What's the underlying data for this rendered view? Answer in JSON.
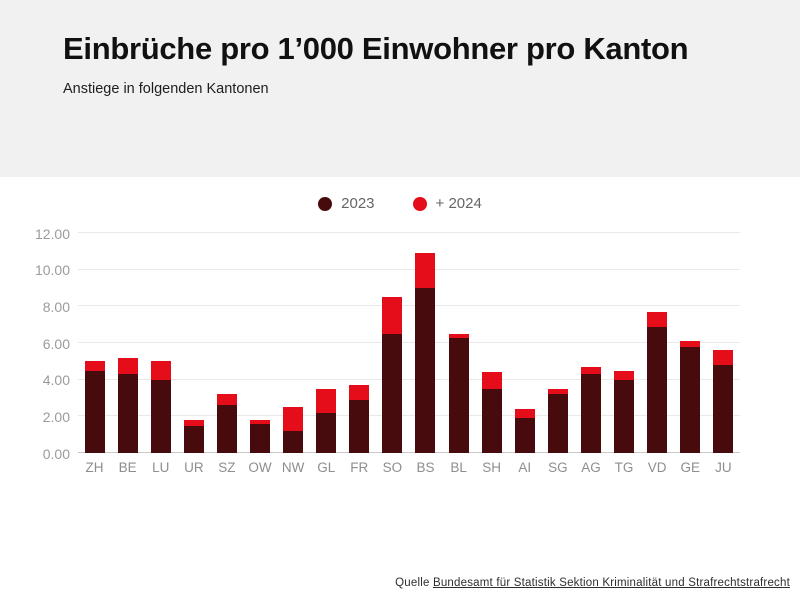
{
  "header": {
    "title": "Einbrüche pro 1’000 Einwohner pro Kanton",
    "subtitle": "Anstiege in folgenden Kantonen"
  },
  "legend": {
    "items": [
      {
        "label": "2023",
        "color": "#470b0e"
      },
      {
        "label": "+ 2024",
        "color": "#e50d1a"
      }
    ]
  },
  "chart_data": {
    "type": "bar",
    "stacked": true,
    "title": "Einbrüche pro 1’000 Einwohner pro Kanton",
    "xlabel": "",
    "ylabel": "",
    "ylim": [
      0,
      12
    ],
    "ytick_labels": [
      "0.00",
      "2.00",
      "4.00",
      "6.00",
      "8.00",
      "10.00",
      "12.00"
    ],
    "ytick_values": [
      0,
      2,
      4,
      6,
      8,
      10,
      12
    ],
    "grid": "horizontal",
    "legend_position": "top-center",
    "categories": [
      "ZH",
      "BE",
      "LU",
      "UR",
      "SZ",
      "OW",
      "NW",
      "GL",
      "FR",
      "SO",
      "BS",
      "BL",
      "SH",
      "AI",
      "SG",
      "AG",
      "TG",
      "VD",
      "GE",
      "JU"
    ],
    "series": [
      {
        "name": "2023",
        "color": "#470b0e",
        "values": [
          4.5,
          4.3,
          4.0,
          1.5,
          2.6,
          1.6,
          1.2,
          2.2,
          2.9,
          6.5,
          9.0,
          6.3,
          3.5,
          1.9,
          3.2,
          4.3,
          4.0,
          6.9,
          5.8,
          4.8
        ]
      },
      {
        "name": "+ 2024",
        "color": "#e50d1a",
        "values": [
          0.5,
          0.9,
          1.0,
          0.3,
          0.6,
          0.2,
          1.3,
          1.3,
          0.8,
          2.0,
          1.9,
          0.2,
          0.9,
          0.5,
          0.3,
          0.4,
          0.5,
          0.8,
          0.3,
          0.8
        ]
      }
    ],
    "totals_2024": [
      5.0,
      5.2,
      5.0,
      1.8,
      3.2,
      1.8,
      2.5,
      3.5,
      3.7,
      8.5,
      10.9,
      6.5,
      4.4,
      2.4,
      3.5,
      4.7,
      4.5,
      7.7,
      6.1,
      5.6
    ]
  },
  "footer": {
    "prefix": "Quelle ",
    "link": "Bundesamt für Statistik Sektion Kriminalität und Strafrechtstrafrecht"
  },
  "colors": {
    "header_bg": "#f1f1f1",
    "gridline": "#e9e9e9",
    "baseline": "#c9c9c9",
    "axis_text": "#9b9b9b"
  }
}
